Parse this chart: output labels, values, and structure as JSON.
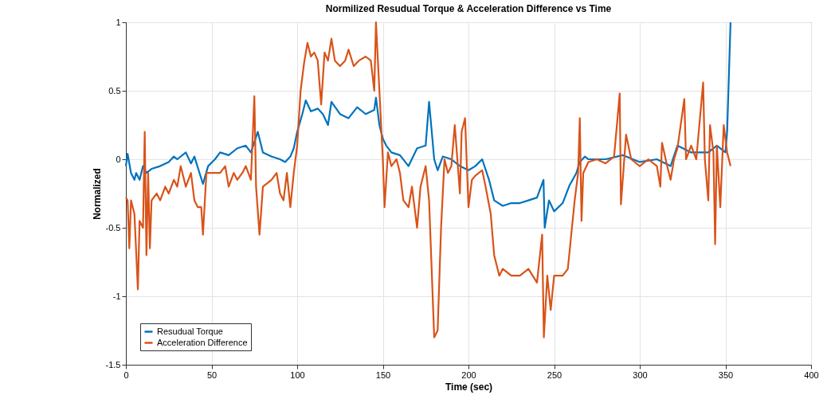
{
  "chart_data": {
    "type": "line",
    "title": "Normilized Resudual Torque & Acceleration Difference vs Time",
    "xlabel": "Time (sec)",
    "ylabel": "Normalized",
    "xlim": [
      0,
      400
    ],
    "xticks": [
      0,
      50,
      100,
      150,
      200,
      250,
      300,
      350,
      400
    ],
    "ylim": [
      -1.5,
      1
    ],
    "yticks": [
      -1.5,
      -1,
      -0.5,
      0,
      0.5,
      1
    ],
    "grid": true,
    "legend": "bottom left",
    "line_style": "solid",
    "series": [
      {
        "name": "Resudual Torque",
        "color": "#0072bd",
        "x": [
          0,
          1,
          3,
          5,
          6,
          8,
          10,
          12,
          15,
          20,
          25,
          28,
          30,
          35,
          38,
          40,
          45,
          48,
          52,
          55,
          60,
          65,
          70,
          73,
          77,
          80,
          85,
          90,
          93,
          96,
          98,
          100,
          103,
          105,
          108,
          112,
          115,
          118,
          120,
          125,
          130,
          135,
          140,
          145,
          146,
          148,
          150,
          152,
          155,
          160,
          165,
          170,
          175,
          177,
          180,
          182,
          185,
          190,
          195,
          200,
          204,
          208,
          212,
          215,
          220,
          225,
          230,
          235,
          240,
          243.8,
          244.5,
          247,
          250,
          255,
          259,
          263,
          265,
          268,
          270,
          280,
          290,
          300,
          310,
          318,
          322,
          330,
          340,
          345,
          350,
          351,
          353
        ],
        "values": [
          -0.05,
          0.04,
          -0.1,
          -0.15,
          -0.1,
          -0.15,
          -0.05,
          -0.1,
          -0.07,
          -0.05,
          -0.02,
          0.02,
          0,
          0.05,
          -0.03,
          0.02,
          -0.18,
          -0.05,
          0,
          0.05,
          0.03,
          0.08,
          0.1,
          0.05,
          0.2,
          0.05,
          0.02,
          0,
          -0.02,
          0.02,
          0.08,
          0.2,
          0.33,
          0.43,
          0.35,
          0.37,
          0.33,
          0.25,
          0.42,
          0.33,
          0.3,
          0.38,
          0.33,
          0.36,
          0.45,
          0.25,
          0.15,
          0.1,
          0.05,
          0.03,
          -0.05,
          0.08,
          0.1,
          0.42,
          0,
          -0.08,
          0.02,
          0,
          -0.05,
          -0.08,
          -0.05,
          0,
          -0.15,
          -0.3,
          -0.34,
          -0.32,
          -0.32,
          -0.3,
          -0.28,
          -0.15,
          -0.5,
          -0.3,
          -0.38,
          -0.32,
          -0.19,
          -0.1,
          -0.02,
          0.02,
          0,
          0,
          0.03,
          -0.02,
          0,
          -0.05,
          0.1,
          0.05,
          0.05,
          0.1,
          0.05,
          0.2,
          1.0
        ]
      },
      {
        "name": "Acceleration Difference",
        "color": "#d95319",
        "x": [
          0,
          1,
          2,
          3,
          5,
          7,
          8,
          10,
          11,
          12,
          13,
          14,
          15,
          18,
          20,
          23,
          25,
          28,
          30,
          32,
          35,
          38,
          40,
          42,
          44,
          45,
          47,
          50,
          55,
          58,
          60,
          63,
          65,
          68,
          70,
          73,
          75,
          76,
          78,
          80,
          85,
          88,
          90,
          92,
          94,
          96,
          98,
          100,
          102,
          104,
          106,
          108,
          110,
          112,
          114,
          116,
          118,
          120,
          122,
          125,
          128,
          130,
          133,
          136,
          140,
          143,
          145,
          146,
          148,
          150,
          151,
          153,
          155,
          158,
          160,
          162,
          165,
          167,
          170,
          172,
          175,
          177,
          180,
          182,
          184,
          186,
          188,
          190,
          192,
          195,
          196,
          198,
          200,
          202,
          204,
          208,
          210,
          213,
          215,
          218,
          220,
          225,
          230,
          235,
          240,
          243,
          244,
          246,
          248,
          250,
          255,
          258,
          260,
          262,
          264,
          265,
          266,
          267,
          270,
          275,
          280,
          285,
          288.3,
          289,
          292,
          295,
          300,
          305,
          310,
          312,
          313,
          316,
          318,
          320,
          322,
          326,
          327,
          330,
          333,
          337,
          338,
          340,
          341,
          343,
          344,
          345,
          347,
          349,
          351,
          353
        ],
        "values": [
          -0.28,
          -0.3,
          -0.65,
          -0.3,
          -0.4,
          -0.95,
          -0.45,
          -0.5,
          0.2,
          -0.7,
          -0.1,
          -0.65,
          -0.3,
          -0.25,
          -0.3,
          -0.2,
          -0.25,
          -0.15,
          -0.2,
          -0.05,
          -0.2,
          -0.1,
          -0.3,
          -0.35,
          -0.35,
          -0.55,
          -0.1,
          -0.1,
          -0.1,
          -0.05,
          -0.2,
          -0.1,
          -0.15,
          -0.1,
          -0.05,
          -0.15,
          0.46,
          -0.2,
          -0.55,
          -0.2,
          -0.15,
          -0.1,
          -0.25,
          -0.3,
          -0.1,
          -0.35,
          -0.1,
          0.1,
          0.5,
          0.7,
          0.85,
          0.75,
          0.78,
          0.72,
          0.4,
          0.78,
          0.72,
          0.88,
          0.72,
          0.68,
          0.72,
          0.8,
          0.68,
          0.72,
          0.75,
          0.72,
          0.5,
          1.0,
          0.5,
          0,
          -0.35,
          0.05,
          -0.05,
          0,
          -0.1,
          -0.3,
          -0.35,
          -0.2,
          -0.5,
          -0.2,
          -0.05,
          -0.3,
          -1.3,
          -1.25,
          -0.5,
          0,
          -0.1,
          -0.05,
          0.25,
          -0.25,
          0.2,
          0.3,
          -0.35,
          -0.15,
          -0.12,
          -0.08,
          -0.2,
          -0.4,
          -0.7,
          -0.85,
          -0.8,
          -0.85,
          -0.85,
          -0.8,
          -0.9,
          -0.55,
          -1.3,
          -0.85,
          -1.1,
          -0.85,
          -0.85,
          -0.8,
          -0.55,
          -0.3,
          -0.1,
          0.3,
          -0.45,
          -0.1,
          -0.02,
          0,
          -0.03,
          0.02,
          0.48,
          -0.33,
          0.18,
          0,
          -0.05,
          0,
          -0.05,
          -0.2,
          0.12,
          -0.05,
          -0.15,
          0,
          0.08,
          0.44,
          0,
          0.1,
          0,
          0.56,
          0,
          -0.3,
          0.25,
          0.05,
          -0.62,
          0.1,
          -0.35,
          0.25,
          0.05,
          -0.05
        ]
      }
    ]
  }
}
